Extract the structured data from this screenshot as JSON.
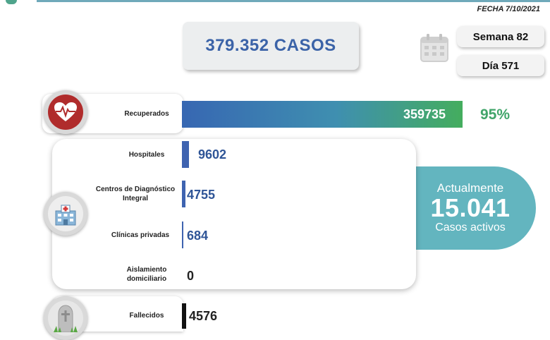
{
  "header": {
    "date": "FECHA 7/10/2021"
  },
  "summary": {
    "total_cases": "379.352 CASOS",
    "week": "Semana 82",
    "day": "Día 571"
  },
  "icons": {
    "calendar": "calendar-icon",
    "heart": "heartbeat-icon",
    "hospital": "hospital-icon",
    "grave": "tombstone-icon"
  },
  "recovered": {
    "label": "Recuperados",
    "value": "359735",
    "percent": "95%"
  },
  "hospitalized": [
    {
      "label": "Hospitales",
      "value": "9602"
    },
    {
      "label": "Centros de Diagnóstico Integral",
      "value": "4755"
    },
    {
      "label": "Clínicas privadas",
      "value": "684"
    },
    {
      "label": "Aislamiento domiciliario",
      "value": "0"
    }
  ],
  "active": {
    "title": "Actualmente",
    "count": "15.041",
    "subtitle": "Casos activos"
  },
  "deceased": {
    "label": "Fallecidos",
    "value": "4576"
  },
  "colors": {
    "accent_blue": "#3e63b0",
    "recovered_green": "#41a56a",
    "active_teal": "#63b5bf",
    "heart_red": "#b02c2c"
  }
}
